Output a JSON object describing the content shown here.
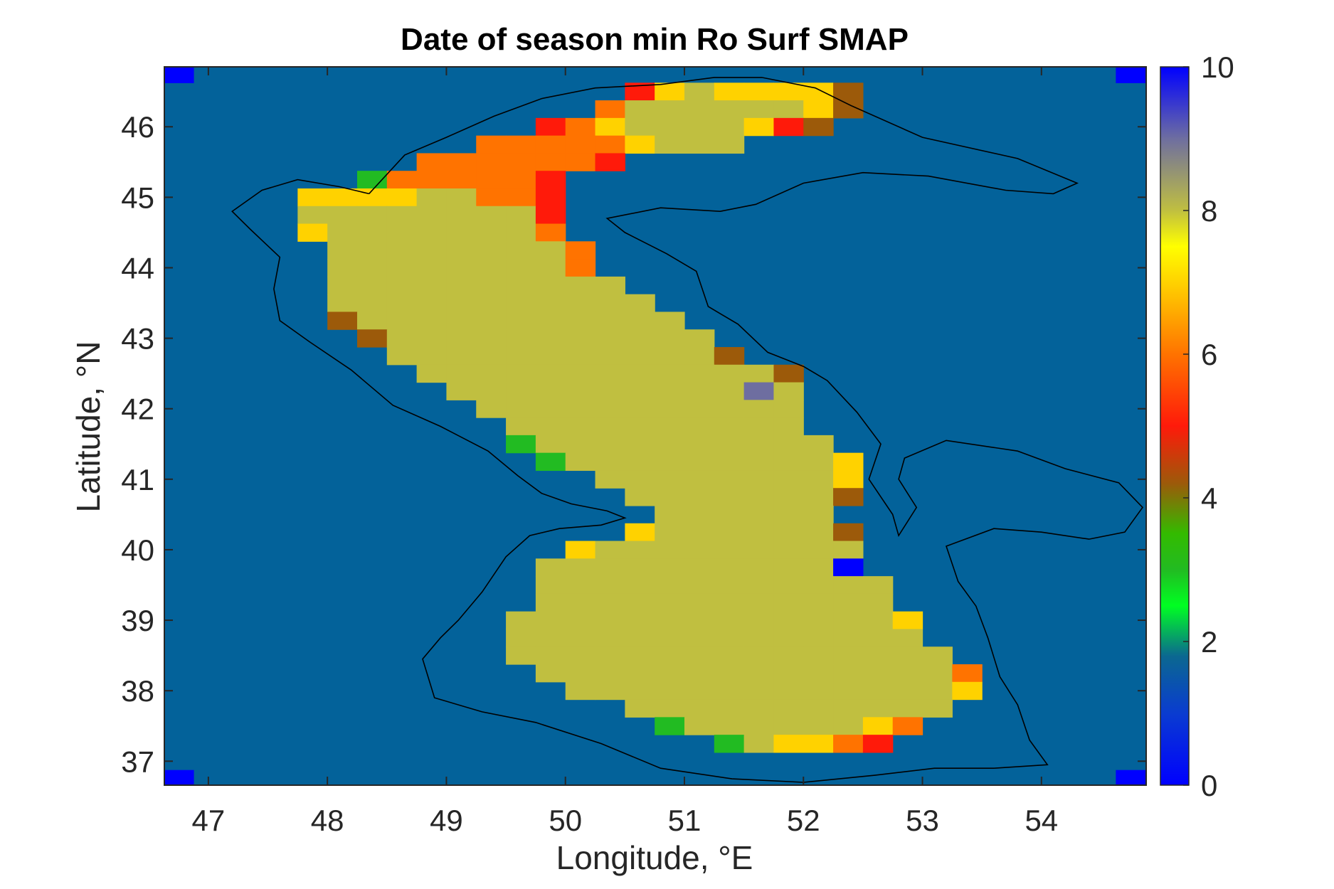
{
  "chart_data": {
    "type": "heatmap",
    "title": "Date of season min Ro Surf SMAP",
    "xlabel": "Longitude, °E",
    "ylabel": "Latitude, °N",
    "xlim": [
      46.63,
      54.88
    ],
    "ylim": [
      36.66,
      46.85
    ],
    "xticks": [
      47,
      48,
      49,
      50,
      51,
      52,
      53,
      54
    ],
    "yticks": [
      37,
      38,
      39,
      40,
      41,
      42,
      43,
      44,
      45,
      46
    ],
    "colorbar": {
      "min": 0,
      "max": 10,
      "ticks": [
        0,
        2,
        4,
        6,
        8,
        10
      ],
      "colormap": "jet-like"
    },
    "grid": false,
    "background_value": 1,
    "cell_size_deg": 0.25,
    "colors": {
      "background": "#03629a",
      "v0": "#0000ff",
      "v2.5": "#22bb22",
      "v4": "#9c5a0a",
      "v5": "#ff1a0a",
      "v6": "#ff7300",
      "v7": "#ffd200",
      "v8": "#c0bf40",
      "v9": "#6e6ea0"
    },
    "rows_note": "Each row: lat center, then runs [lon_start_center, lon_end_center, value]; value 8 dominates interior.",
    "rows": [
      {
        "lat": 46.5,
        "runs": [
          [
            50.625,
            50.625,
            5
          ],
          [
            50.875,
            50.875,
            7
          ],
          [
            51.125,
            51.125,
            8
          ],
          [
            51.375,
            52.125,
            7
          ],
          [
            52.375,
            52.375,
            4
          ]
        ]
      },
      {
        "lat": 46.25,
        "runs": [
          [
            50.375,
            50.375,
            6
          ],
          [
            50.625,
            51.875,
            8
          ],
          [
            52.125,
            52.125,
            7
          ],
          [
            52.375,
            52.375,
            4
          ]
        ]
      },
      {
        "lat": 46.0,
        "runs": [
          [
            49.875,
            49.875,
            5
          ],
          [
            50.125,
            50.125,
            6
          ],
          [
            50.375,
            50.375,
            7
          ],
          [
            50.625,
            51.375,
            8
          ],
          [
            51.625,
            51.625,
            7
          ],
          [
            51.875,
            51.875,
            5
          ],
          [
            52.125,
            52.125,
            4
          ]
        ]
      },
      {
        "lat": 45.75,
        "runs": [
          [
            49.375,
            50.375,
            6
          ],
          [
            50.625,
            50.625,
            7
          ],
          [
            50.875,
            51.375,
            8
          ]
        ]
      },
      {
        "lat": 45.5,
        "runs": [
          [
            48.875,
            50.125,
            6
          ],
          [
            50.375,
            50.375,
            5
          ]
        ]
      },
      {
        "lat": 45.25,
        "runs": [
          [
            48.375,
            48.375,
            2.5
          ],
          [
            48.625,
            49.625,
            6
          ],
          [
            49.875,
            49.875,
            5
          ]
        ]
      },
      {
        "lat": 45.0,
        "runs": [
          [
            47.875,
            48.625,
            7
          ],
          [
            48.875,
            49.125,
            8
          ],
          [
            49.375,
            49.625,
            6
          ],
          [
            49.875,
            49.875,
            5
          ]
        ]
      },
      {
        "lat": 44.75,
        "runs": [
          [
            47.875,
            49.625,
            8
          ],
          [
            49.875,
            49.875,
            5
          ]
        ]
      },
      {
        "lat": 44.5,
        "runs": [
          [
            47.875,
            47.875,
            7
          ],
          [
            48.125,
            49.625,
            8
          ],
          [
            49.875,
            49.875,
            6
          ]
        ]
      },
      {
        "lat": 44.25,
        "runs": [
          [
            48.125,
            49.875,
            8
          ],
          [
            50.125,
            50.125,
            6
          ]
        ]
      },
      {
        "lat": 44.0,
        "runs": [
          [
            48.125,
            49.875,
            8
          ],
          [
            50.125,
            50.125,
            6
          ]
        ]
      },
      {
        "lat": 43.75,
        "runs": [
          [
            48.125,
            50.375,
            8
          ]
        ]
      },
      {
        "lat": 43.5,
        "runs": [
          [
            48.125,
            50.625,
            8
          ]
        ]
      },
      {
        "lat": 43.25,
        "runs": [
          [
            48.125,
            48.125,
            4
          ],
          [
            48.375,
            50.875,
            8
          ]
        ]
      },
      {
        "lat": 43.0,
        "runs": [
          [
            48.375,
            48.375,
            4
          ],
          [
            48.625,
            51.125,
            8
          ]
        ]
      },
      {
        "lat": 42.75,
        "runs": [
          [
            48.625,
            51.125,
            8
          ],
          [
            51.375,
            51.375,
            4
          ]
        ]
      },
      {
        "lat": 42.5,
        "runs": [
          [
            48.875,
            51.625,
            8
          ],
          [
            51.875,
            51.875,
            4
          ]
        ]
      },
      {
        "lat": 42.25,
        "runs": [
          [
            49.125,
            51.375,
            8
          ],
          [
            51.625,
            51.625,
            9
          ],
          [
            51.875,
            51.875,
            8
          ]
        ]
      },
      {
        "lat": 42.0,
        "runs": [
          [
            49.375,
            51.875,
            8
          ]
        ]
      },
      {
        "lat": 41.75,
        "runs": [
          [
            49.625,
            51.875,
            8
          ]
        ]
      },
      {
        "lat": 41.5,
        "runs": [
          [
            49.625,
            49.625,
            2.5
          ],
          [
            49.875,
            52.125,
            8
          ]
        ]
      },
      {
        "lat": 41.25,
        "runs": [
          [
            49.875,
            49.875,
            2.5
          ],
          [
            50.125,
            52.125,
            8
          ],
          [
            52.375,
            52.375,
            7
          ]
        ]
      },
      {
        "lat": 41.0,
        "runs": [
          [
            50.375,
            52.125,
            8
          ],
          [
            52.375,
            52.375,
            7
          ]
        ]
      },
      {
        "lat": 40.75,
        "runs": [
          [
            50.625,
            52.125,
            8
          ],
          [
            52.375,
            52.375,
            4
          ]
        ]
      },
      {
        "lat": 40.5,
        "runs": [
          [
            50.875,
            52.125,
            8
          ]
        ]
      },
      {
        "lat": 40.25,
        "runs": [
          [
            50.625,
            50.625,
            7
          ],
          [
            50.875,
            52.125,
            8
          ],
          [
            52.375,
            52.375,
            4
          ]
        ]
      },
      {
        "lat": 40.0,
        "runs": [
          [
            50.125,
            50.125,
            7
          ],
          [
            50.375,
            52.375,
            8
          ]
        ]
      },
      {
        "lat": 39.75,
        "runs": [
          [
            49.875,
            52.125,
            8
          ],
          [
            52.375,
            52.375,
            0
          ]
        ]
      },
      {
        "lat": 39.5,
        "runs": [
          [
            49.875,
            52.625,
            8
          ]
        ]
      },
      {
        "lat": 39.25,
        "runs": [
          [
            49.875,
            52.625,
            8
          ]
        ]
      },
      {
        "lat": 39.0,
        "runs": [
          [
            49.625,
            52.625,
            8
          ],
          [
            52.875,
            52.875,
            7
          ]
        ]
      },
      {
        "lat": 38.75,
        "runs": [
          [
            49.625,
            52.875,
            8
          ]
        ]
      },
      {
        "lat": 38.5,
        "runs": [
          [
            49.625,
            53.125,
            8
          ]
        ]
      },
      {
        "lat": 38.25,
        "runs": [
          [
            49.875,
            53.125,
            8
          ],
          [
            53.375,
            53.375,
            6
          ]
        ]
      },
      {
        "lat": 38.0,
        "runs": [
          [
            50.125,
            53.125,
            8
          ],
          [
            53.375,
            53.375,
            7
          ]
        ]
      },
      {
        "lat": 37.75,
        "runs": [
          [
            50.625,
            53.125,
            8
          ]
        ]
      },
      {
        "lat": 37.5,
        "runs": [
          [
            50.875,
            50.875,
            2.5
          ],
          [
            51.125,
            52.375,
            8
          ],
          [
            52.625,
            52.625,
            7
          ],
          [
            52.875,
            52.875,
            6
          ]
        ]
      },
      {
        "lat": 37.25,
        "runs": [
          [
            51.375,
            51.375,
            2.5
          ],
          [
            51.625,
            51.625,
            8
          ],
          [
            51.875,
            52.125,
            7
          ],
          [
            52.375,
            52.375,
            6
          ],
          [
            52.625,
            52.625,
            5
          ]
        ]
      }
    ],
    "corner_cells": [
      {
        "lat": 46.75,
        "lon": 46.75,
        "value": 0
      },
      {
        "lat": 46.75,
        "lon": 54.75,
        "value": 0
      },
      {
        "lat": 36.75,
        "lon": 46.75,
        "value": 0
      },
      {
        "lat": 36.75,
        "lon": 54.75,
        "value": 0
      }
    ],
    "coastline": [
      [
        [
          48.35,
          45.05
        ],
        [
          48.1,
          45.15
        ],
        [
          47.75,
          45.25
        ],
        [
          47.45,
          45.1
        ],
        [
          47.2,
          44.8
        ],
        [
          47.35,
          44.55
        ],
        [
          47.6,
          44.15
        ],
        [
          47.55,
          43.7
        ],
        [
          47.6,
          43.25
        ],
        [
          47.85,
          42.95
        ],
        [
          48.2,
          42.55
        ],
        [
          48.55,
          42.05
        ],
        [
          48.95,
          41.75
        ],
        [
          49.35,
          41.4
        ],
        [
          49.6,
          41.05
        ],
        [
          49.8,
          40.8
        ],
        [
          50.05,
          40.65
        ],
        [
          50.35,
          40.55
        ],
        [
          50.5,
          40.45
        ],
        [
          50.3,
          40.35
        ],
        [
          49.95,
          40.3
        ],
        [
          49.7,
          40.2
        ],
        [
          49.5,
          39.9
        ],
        [
          49.3,
          39.4
        ],
        [
          49.1,
          39.0
        ],
        [
          48.95,
          38.75
        ],
        [
          48.8,
          38.45
        ],
        [
          48.9,
          37.9
        ],
        [
          49.3,
          37.7
        ],
        [
          49.75,
          37.55
        ],
        [
          50.3,
          37.25
        ],
        [
          50.8,
          36.9
        ],
        [
          51.4,
          36.75
        ],
        [
          52.0,
          36.7
        ],
        [
          52.6,
          36.8
        ],
        [
          53.1,
          36.9
        ],
        [
          53.6,
          36.9
        ],
        [
          54.05,
          36.95
        ],
        [
          53.9,
          37.3
        ],
        [
          53.8,
          37.8
        ],
        [
          53.65,
          38.2
        ],
        [
          53.55,
          38.75
        ],
        [
          53.45,
          39.2
        ],
        [
          53.3,
          39.55
        ],
        [
          53.2,
          40.05
        ],
        [
          53.6,
          40.3
        ],
        [
          54.0,
          40.25
        ],
        [
          54.4,
          40.15
        ],
        [
          54.7,
          40.25
        ],
        [
          54.85,
          40.6
        ],
        [
          54.65,
          40.95
        ],
        [
          54.2,
          41.15
        ],
        [
          53.8,
          41.4
        ],
        [
          53.2,
          41.55
        ],
        [
          52.85,
          41.3
        ],
        [
          52.8,
          41.0
        ],
        [
          52.95,
          40.6
        ],
        [
          52.8,
          40.2
        ],
        [
          52.75,
          40.5
        ],
        [
          52.55,
          41.0
        ],
        [
          52.65,
          41.5
        ],
        [
          52.45,
          41.95
        ],
        [
          52.2,
          42.4
        ],
        [
          52.0,
          42.6
        ],
        [
          51.7,
          42.8
        ],
        [
          51.45,
          43.2
        ],
        [
          51.2,
          43.45
        ],
        [
          51.1,
          43.95
        ],
        [
          50.85,
          44.2
        ],
        [
          50.5,
          44.5
        ],
        [
          50.35,
          44.7
        ],
        [
          50.8,
          44.85
        ],
        [
          51.3,
          44.8
        ],
        [
          51.6,
          44.9
        ],
        [
          52.0,
          45.2
        ],
        [
          52.5,
          45.35
        ],
        [
          53.05,
          45.3
        ],
        [
          53.7,
          45.1
        ],
        [
          54.1,
          45.05
        ],
        [
          54.3,
          45.2
        ],
        [
          53.8,
          45.55
        ],
        [
          53.0,
          45.85
        ],
        [
          52.4,
          46.3
        ],
        [
          52.1,
          46.55
        ],
        [
          51.65,
          46.7
        ],
        [
          51.25,
          46.7
        ],
        [
          50.8,
          46.6
        ],
        [
          50.25,
          46.55
        ],
        [
          49.8,
          46.4
        ],
        [
          49.4,
          46.15
        ],
        [
          49.0,
          45.85
        ],
        [
          48.65,
          45.6
        ],
        [
          48.35,
          45.05
        ]
      ]
    ]
  }
}
